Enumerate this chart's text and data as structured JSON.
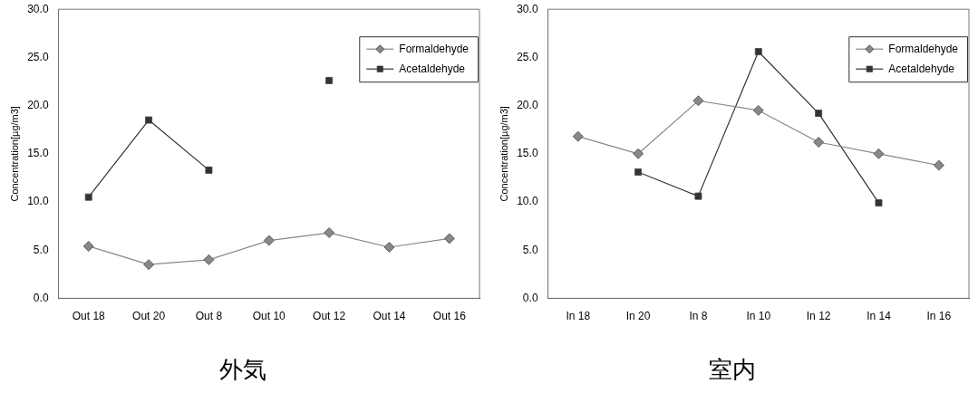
{
  "chart_data": [
    {
      "type": "line",
      "title": "外気",
      "ylabel": "Concentration[µg/m3]",
      "categories": [
        "Out 18",
        "Out 20",
        "Out 8",
        "Out 10",
        "Out 12",
        "Out 14",
        "Out 16"
      ],
      "series": [
        {
          "name": "Formaldehyde",
          "color": "#888888",
          "marker": "diamond",
          "values": [
            5.4,
            3.5,
            4.0,
            6.0,
            6.8,
            5.3,
            6.2
          ]
        },
        {
          "name": "Acetaldehyde",
          "color": "#333333",
          "marker": "square",
          "values": [
            10.5,
            18.5,
            13.3,
            null,
            22.6,
            null,
            null
          ]
        }
      ],
      "ylim": [
        0,
        30
      ],
      "yticks": [
        {
          "value": 0,
          "label": "0.0"
        },
        {
          "value": 5,
          "label": "5.0"
        },
        {
          "value": 10,
          "label": "10.0"
        },
        {
          "value": 15,
          "label": "15.0"
        },
        {
          "value": 20,
          "label": "20.0"
        },
        {
          "value": 25,
          "label": "25.0"
        },
        {
          "value": 30,
          "label": "30.0"
        }
      ],
      "grid": false,
      "legend": "top right"
    },
    {
      "type": "line",
      "title": "室内",
      "ylabel": "Concentration[µg/m3]",
      "categories": [
        "In 18",
        "In 20",
        "In 8",
        "In 10",
        "In 12",
        "In 14",
        "In 16"
      ],
      "series": [
        {
          "name": "Formaldehyde",
          "color": "#888888",
          "marker": "diamond",
          "values": [
            16.8,
            15.0,
            20.5,
            19.5,
            16.2,
            15.0,
            13.8
          ]
        },
        {
          "name": "Acetaldehyde",
          "color": "#333333",
          "marker": "square",
          "values": [
            null,
            13.1,
            10.6,
            25.6,
            19.2,
            9.9,
            null
          ]
        }
      ],
      "ylim": [
        0,
        30
      ],
      "yticks": [
        {
          "value": 0,
          "label": "0.0"
        },
        {
          "value": 5,
          "label": "5.0"
        },
        {
          "value": 10,
          "label": "10.0"
        },
        {
          "value": 15,
          "label": "15.0"
        },
        {
          "value": 20,
          "label": "20.0"
        },
        {
          "value": 25,
          "label": "25.0"
        },
        {
          "value": 30,
          "label": "30.0"
        }
      ],
      "grid": false,
      "legend": "top right"
    }
  ]
}
